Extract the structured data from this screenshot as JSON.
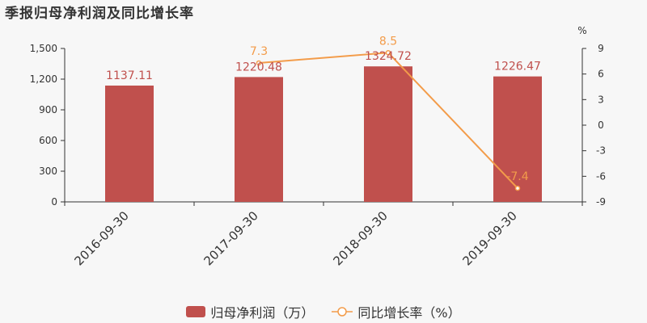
{
  "chart_data": {
    "type": "bar",
    "title": "季报归母净利润及同比增长率",
    "categories": [
      "2016-09-30",
      "2017-09-30",
      "2018-09-30",
      "2019-09-30"
    ],
    "series": [
      {
        "name": "归母净利润（万）",
        "type": "bar",
        "axis": "left",
        "values": [
          1137.11,
          1220.48,
          1324.72,
          1226.47
        ],
        "labels": [
          "1137.11",
          "1220.48",
          "1324.72",
          "1226.47"
        ],
        "color": "#c0504d"
      },
      {
        "name": "同比增长率（%）",
        "type": "line",
        "axis": "right",
        "values": [
          null,
          7.3,
          8.5,
          -7.4
        ],
        "labels": [
          "",
          "7.3",
          "8.5",
          "-7.4"
        ],
        "color": "#f39c4a"
      }
    ],
    "y_left": {
      "min": 0,
      "max": 1500,
      "ticks": [
        0,
        300,
        600,
        900,
        1200,
        1500
      ],
      "tick_labels": [
        "0",
        "300",
        "600",
        "900",
        "1,200",
        "1,500"
      ]
    },
    "y_right": {
      "min": -9,
      "max": 9,
      "ticks": [
        -9,
        -6,
        -3,
        0,
        3,
        6,
        9
      ],
      "tick_labels": [
        "-9",
        "-6",
        "-3",
        "0",
        "3",
        "6",
        "9"
      ],
      "unit": "%"
    },
    "legend_position": "bottom",
    "grid": false
  }
}
